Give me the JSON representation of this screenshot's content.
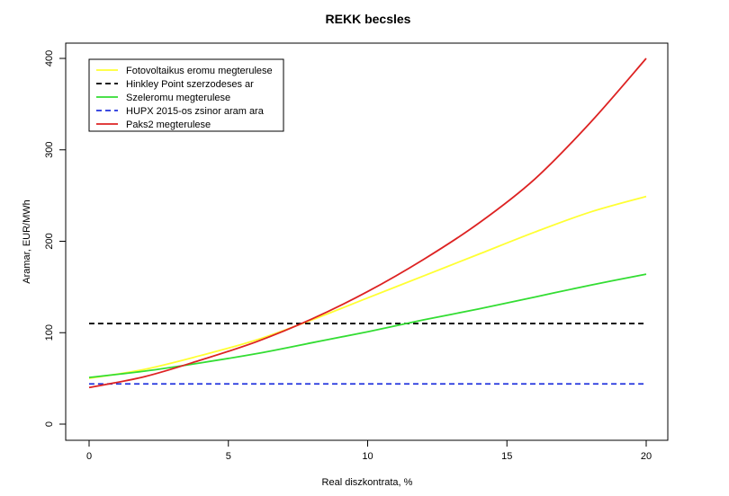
{
  "chart_data": {
    "type": "line",
    "title": "REKK becsles",
    "xlabel": "Real diszkontrata, %",
    "ylabel": "Aramar, EUR/MWh",
    "xlim": [
      0,
      20
    ],
    "ylim": [
      0,
      400
    ],
    "xticks": [
      0,
      5,
      10,
      15,
      20
    ],
    "yticks": [
      0,
      100,
      200,
      300,
      400
    ],
    "legend_position": "top-left",
    "x": [
      0,
      2,
      4,
      6,
      8,
      10,
      12,
      14,
      16,
      18,
      20
    ],
    "series": [
      {
        "name": "Fotovoltaikus eromu megterulese",
        "color": "#ffff33",
        "dash": "solid",
        "values": [
          50,
          60,
          75,
          92,
          114,
          138,
          162,
          186,
          210,
          232,
          249
        ]
      },
      {
        "name": "Hinkley Point szerzodeses ar",
        "color": "#000000",
        "dash": "dashed",
        "values": [
          110,
          110,
          110,
          110,
          110,
          110,
          110,
          110,
          110,
          110,
          110
        ]
      },
      {
        "name": "Szeleromu megterulese",
        "color": "#33dd33",
        "dash": "solid",
        "values": [
          51,
          58,
          67,
          77,
          89,
          101,
          114,
          126,
          139,
          152,
          164
        ]
      },
      {
        "name": "HUPX 2015-os zsinor aram ara",
        "color": "#2233dd",
        "dash": "dashed",
        "values": [
          44,
          44,
          44,
          44,
          44,
          44,
          44,
          44,
          44,
          44,
          44
        ]
      },
      {
        "name": "Paks2 megterulese",
        "color": "#dd2222",
        "dash": "solid",
        "values": [
          40,
          52,
          70,
          90,
          115,
          145,
          180,
          220,
          268,
          330,
          400
        ]
      }
    ]
  }
}
